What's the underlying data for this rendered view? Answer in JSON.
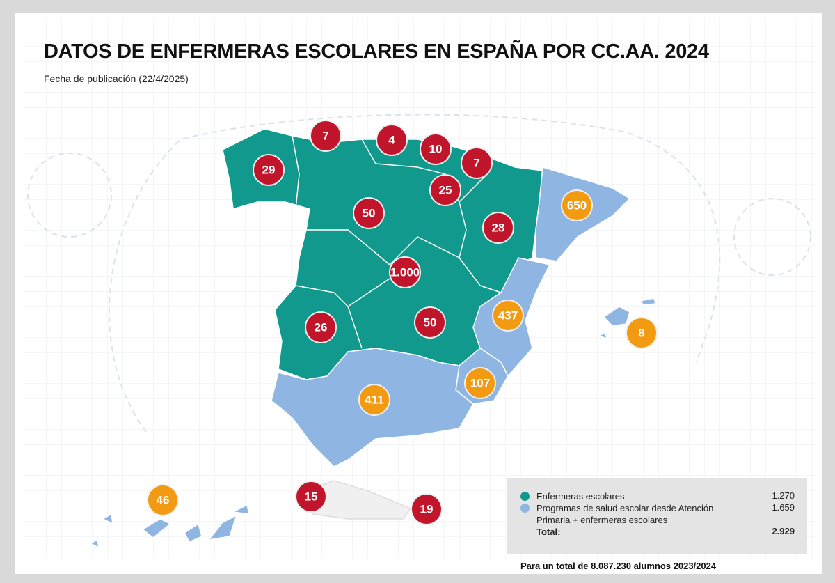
{
  "header": {
    "title": "DATOS DE ENFERMERAS ESCOLARES EN ESPAÑA POR CC.AA. 2024",
    "subtitle": "Fecha de publicación (22/4/2025)"
  },
  "markers": [
    {
      "label": "7",
      "color": "#c0152a"
    },
    {
      "label": "4",
      "color": "#c0152a"
    },
    {
      "label": "10",
      "color": "#c0152a"
    },
    {
      "label": "7",
      "color": "#c0152a"
    },
    {
      "label": "29",
      "color": "#c0152a"
    },
    {
      "label": "25",
      "color": "#c0152a"
    },
    {
      "label": "50",
      "color": "#c0152a"
    },
    {
      "label": "28",
      "color": "#c0152a"
    },
    {
      "label": "650",
      "color": "#f39a13"
    },
    {
      "label": "1.000",
      "color": "#c0152a"
    },
    {
      "label": "437",
      "color": "#f39a13"
    },
    {
      "label": "8",
      "color": "#f39a13"
    },
    {
      "label": "26",
      "color": "#c0152a"
    },
    {
      "label": "50",
      "color": "#c0152a"
    },
    {
      "label": "107",
      "color": "#f39a13"
    },
    {
      "label": "411",
      "color": "#f39a13"
    },
    {
      "label": "46",
      "color": "#f39a13"
    },
    {
      "label": "15",
      "color": "#c0152a"
    },
    {
      "label": "19",
      "color": "#c0152a"
    }
  ],
  "legend": {
    "items": [
      {
        "label": "Enfermeras escolares",
        "value": "1.270",
        "color": "#12998e"
      },
      {
        "label": "Programas de salud escolar desde Atención Primaria + enfermeras escolares",
        "value": "1.659",
        "color": "#8fb6e3"
      }
    ],
    "total": {
      "label": "Total:",
      "value": "2.929"
    }
  },
  "footnote": "Para un total de 8.087.230 alumnos 2023/2024"
}
